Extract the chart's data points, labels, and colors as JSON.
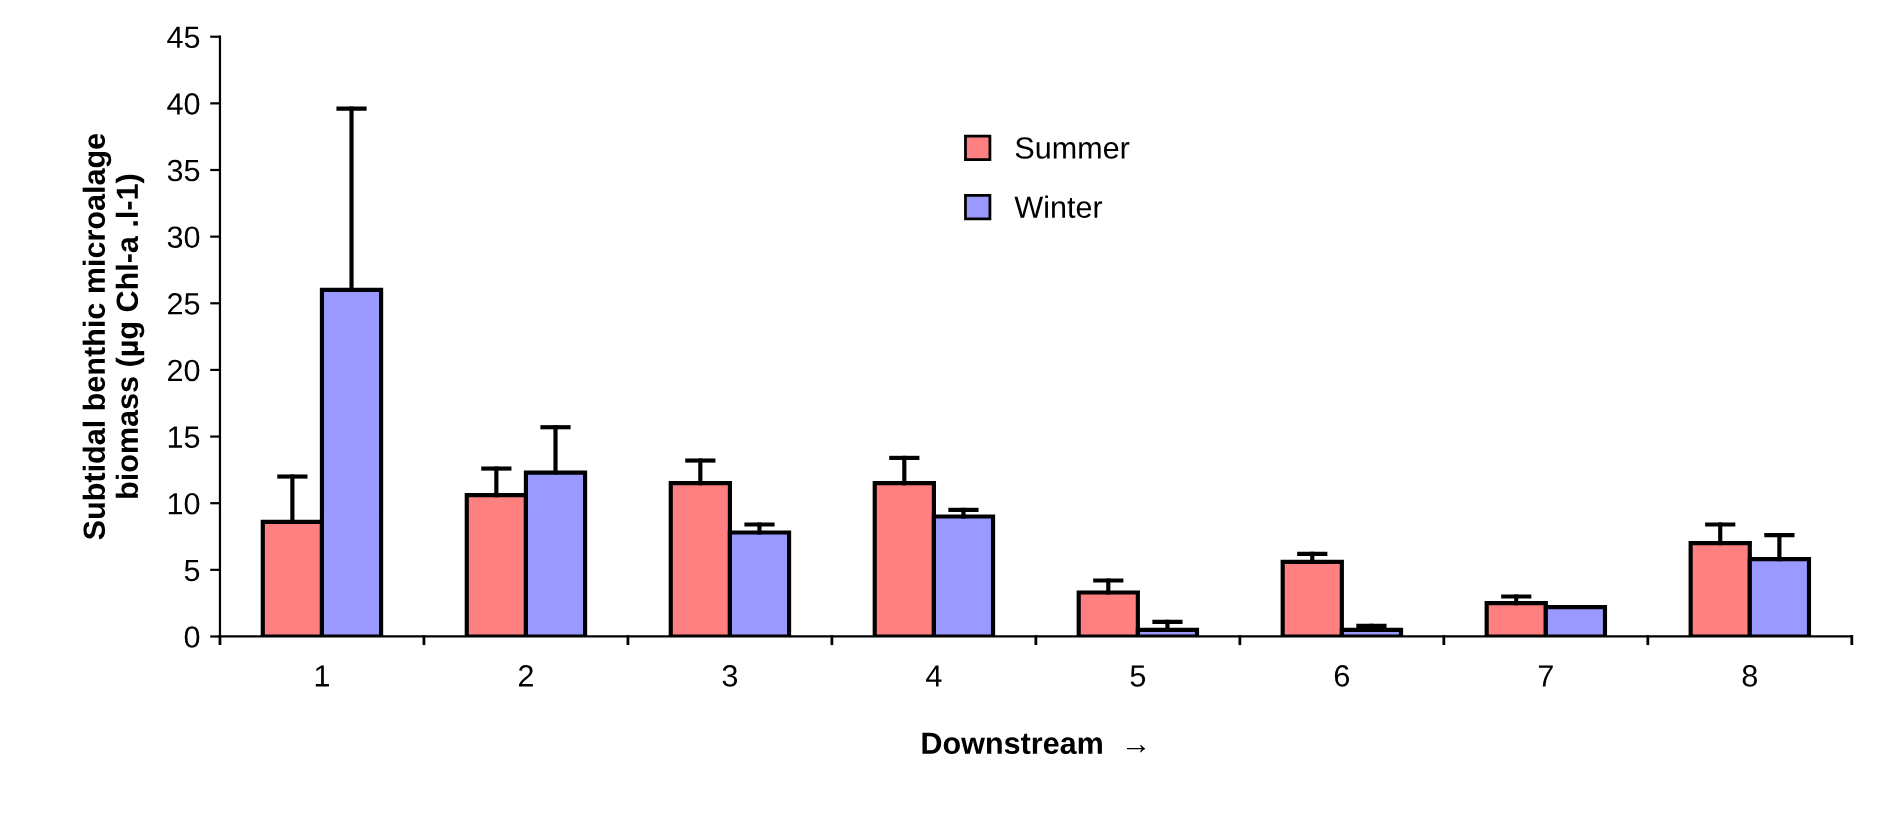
{
  "chart_data": {
    "type": "bar",
    "xlabel": "Downstream  →",
    "ylabel": "Subtidal benthic microalage\nbiomass (µg Chl-a .l-1)",
    "categories": [
      "1",
      "2",
      "3",
      "4",
      "5",
      "6",
      "7",
      "8"
    ],
    "series": [
      {
        "name": "Summer",
        "color": "#ff8080",
        "values": [
          8.6,
          10.6,
          11.5,
          11.5,
          3.3,
          5.6,
          2.5,
          7.0
        ],
        "errors": [
          [
            8.6,
            12.0
          ],
          [
            10.6,
            12.6
          ],
          [
            11.5,
            13.2
          ],
          [
            11.5,
            13.4
          ],
          [
            3.3,
            4.2
          ],
          [
            5.6,
            6.2
          ],
          [
            2.5,
            3.0
          ],
          [
            7.0,
            8.4
          ]
        ]
      },
      {
        "name": "Winter",
        "color": "#9999ff",
        "values": [
          26.0,
          12.3,
          7.8,
          9.0,
          0.5,
          0.5,
          2.2,
          5.8
        ],
        "errors": [
          [
            26.0,
            39.6
          ],
          [
            12.3,
            15.7
          ],
          [
            7.8,
            8.4
          ],
          [
            9.0,
            9.5
          ],
          [
            0.5,
            1.1
          ],
          [
            0.5,
            0.8
          ],
          null,
          [
            5.8,
            7.6
          ]
        ]
      }
    ],
    "ylim": [
      0,
      45
    ],
    "yticks": [
      0,
      5,
      10,
      15,
      20,
      25,
      30,
      35,
      40,
      45
    ],
    "grid": false,
    "legend": "top"
  }
}
